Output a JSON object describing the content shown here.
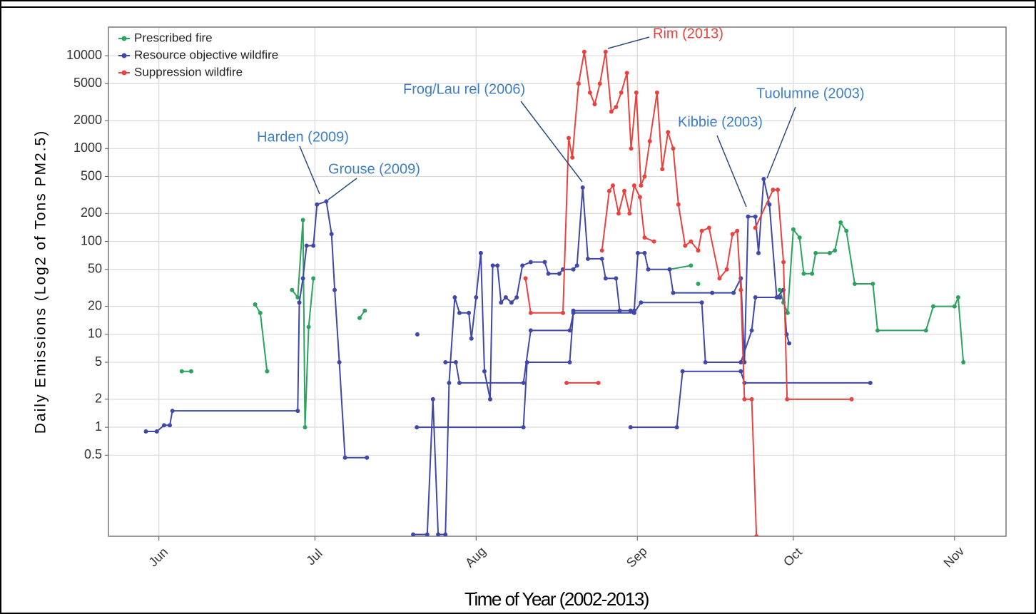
{
  "chart_data": {
    "type": "line",
    "xlabel": "Time of Year (2002-2013)",
    "ylabel": "Daily Emissions (Log2 of Tons PM2.5)",
    "log_scale_y": 2,
    "grid": true,
    "legend": "upper left",
    "xlim": [
      142.3,
      314.9
    ],
    "xticks": [
      {
        "value": 152,
        "label": "Jun"
      },
      {
        "value": 182,
        "label": "Jul"
      },
      {
        "value": 213,
        "label": "Aug"
      },
      {
        "value": 244,
        "label": "Sep"
      },
      {
        "value": 274,
        "label": "Oct"
      },
      {
        "value": 305,
        "label": "Nov"
      }
    ],
    "ylim": [
      0.067,
      20300
    ],
    "yticks": [
      0.5,
      1,
      2,
      5,
      10,
      20,
      50,
      100,
      200,
      500,
      1000,
      2000,
      5000,
      10000
    ],
    "series": [
      {
        "name": "Prescribed fire",
        "color": "#2ca25f",
        "x": [
          156.4,
          158.2,
          null,
          170.5,
          171.5,
          172.8,
          null,
          177.6,
          178.7,
          179.7,
          180.1,
          180.8,
          181.7,
          null,
          190.6,
          191.6,
          null,
          250.2,
          254.3,
          null,
          255.7,
          null,
          271.4,
          272.1,
          272.9,
          274.0,
          275.2,
          276.0,
          277.6,
          278.3,
          281.0,
          282.0,
          283.1,
          284.2,
          285.8,
          289.3,
          290.2,
          299.5,
          300.9,
          305.0,
          305.7,
          306.7
        ],
        "values": [
          4,
          4,
          null,
          21,
          17,
          4,
          null,
          30,
          25,
          170,
          1,
          12,
          40,
          null,
          15,
          18,
          null,
          50,
          55,
          null,
          35,
          null,
          30,
          22,
          17,
          135,
          110,
          45,
          45,
          75,
          75,
          80,
          160,
          130,
          35,
          35,
          11,
          11,
          20,
          20,
          25,
          5
        ]
      },
      {
        "name": "Resource objective wildfire",
        "color": "#3f48a8",
        "x": [
          149.5,
          151.6,
          153.0,
          154.1,
          154.6,
          178.7,
          179.0,
          179.7,
          180.4,
          181.7,
          182.4,
          184.2,
          185.2,
          185.8,
          186.7,
          187.8,
          192.0,
          null,
          201.7,
          null,
          200.9,
          203.6,
          204.7,
          205.7,
          207.1,
          207.8,
          208.9,
          209.8,
          211.6,
          212.1,
          213.0,
          213.9,
          214.6,
          215.7,
          216.2,
          217.1,
          217.8,
          218.7,
          219.8,
          220.8,
          221.9,
          223.5,
          226.2,
          226.9,
          229.0,
          229.7,
          231.7,
          232.4,
          233.5,
          234.5,
          237.2,
          237.9,
          239.9,
          240.6,
          243.4,
          244.1,
          245.4,
          246.1,
          250.2,
          250.9,
          258.4,
          262.5,
          263.9,
          264.6,
          265.3,
          266.7,
          267.3,
          268.3,
          269.4,
          270.8,
          272.1,
          272.7,
          273.2,
          null,
          201.6,
          222.1,
          222.8,
          231.0,
          231.7,
          242.7,
          null,
          242.7,
          251.6,
          252.7,
          263.9,
          264.6,
          288.8,
          null,
          207.1,
          209.1,
          209.8,
          222.1,
          223.5,
          231.0,
          231.7,
          243.4,
          244.7,
          256.4,
          257.1,
          263.9,
          266.0,
          266.7,
          271.4
        ],
        "values": [
          0.9,
          0.9,
          1.05,
          1.05,
          1.5,
          1.5,
          22,
          40,
          90,
          90,
          250,
          270,
          120,
          30,
          5,
          0.47,
          0.47,
          null,
          10,
          null,
          0.07,
          0.07,
          2,
          0.07,
          0.07,
          3,
          25,
          17,
          17,
          9,
          25,
          75,
          4,
          2,
          55,
          55,
          22,
          25,
          22,
          25,
          55,
          60,
          60,
          45,
          45,
          50,
          50,
          55,
          380,
          65,
          65,
          40,
          40,
          18,
          18,
          75,
          75,
          50,
          50,
          28,
          28,
          28,
          40,
          5,
          185,
          185,
          75,
          470,
          250,
          25,
          30,
          10,
          8,
          null,
          1,
          1,
          5,
          5,
          18,
          18,
          null,
          1,
          1,
          4,
          4,
          3,
          3,
          null,
          5,
          5,
          3,
          3,
          11,
          11,
          17,
          17,
          22,
          22,
          5,
          5,
          11,
          25,
          25
        ]
      },
      {
        "name": "Suppression wildfire",
        "color": "#e8423f",
        "x": [
          222.5,
          223.5,
          229.7,
          230.8,
          231.5,
          232.7,
          233.8,
          234.9,
          235.8,
          236.8,
          237.9,
          239.0,
          239.9,
          240.9,
          242.0,
          242.8,
          243.8,
          244.7,
          245.4,
          246.4,
          247.8,
          248.8,
          249.9,
          250.9,
          251.9,
          253.2,
          254.3,
          255.7,
          256.4,
          257.8,
          259.8,
          261.2,
          262.3,
          263.2,
          263.9,
          264.6,
          266.0,
          266.9,
          null,
          237.2,
          238.6,
          239.3,
          240.4,
          241.5,
          242.5,
          243.4,
          244.5,
          245.4,
          247.2,
          null,
          230.4,
          236.5,
          null,
          266.7,
          270.1,
          271.0,
          272.1,
          272.8,
          285.2
        ],
        "values": [
          40,
          17,
          17,
          1300,
          800,
          5000,
          11000,
          4000,
          3000,
          5000,
          11000,
          2500,
          2800,
          4000,
          6500,
          1000,
          4000,
          400,
          500,
          1200,
          4000,
          600,
          1500,
          1000,
          250,
          90,
          100,
          80,
          130,
          140,
          40,
          50,
          120,
          130,
          30,
          2,
          2,
          0.067,
          null,
          80,
          350,
          400,
          200,
          350,
          200,
          400,
          300,
          110,
          100,
          null,
          3,
          3,
          null,
          140,
          360,
          360,
          60,
          2,
          2
        ]
      }
    ],
    "annotations": [
      "Harden (2009)",
      "Grouse (2009)",
      "Frog/Lau rel (2006)",
      "Rim (2013)",
      "Kibbie (2003)",
      "Tuolumne (2003)"
    ]
  }
}
